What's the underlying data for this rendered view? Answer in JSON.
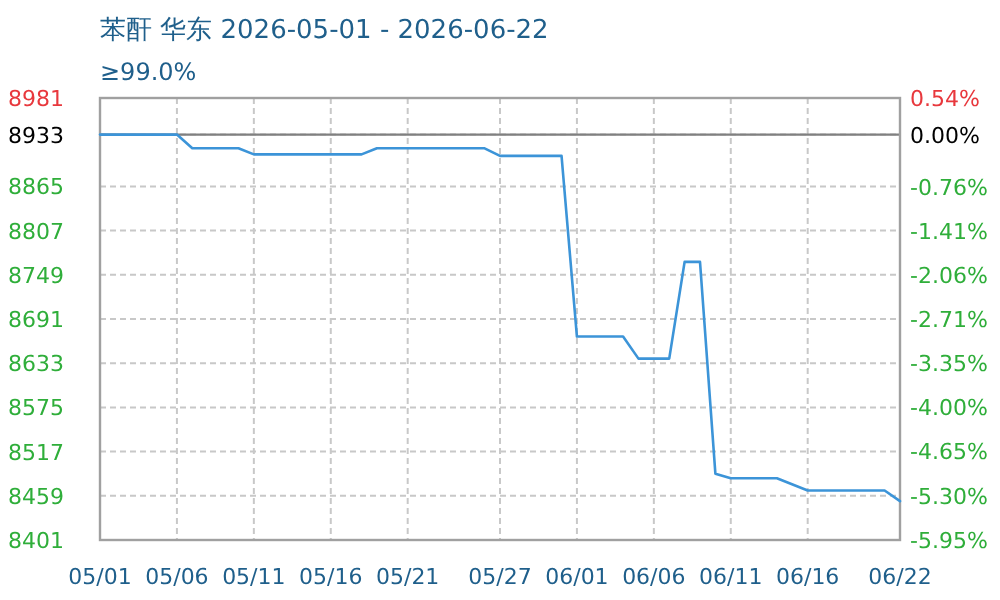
{
  "chart_data": {
    "type": "line",
    "title": "苯酐 华东 2026-05-01 - 2026-06-22",
    "subtitle": "≥99.0%",
    "x": [
      "2026-05-01",
      "2026-05-06",
      "2026-05-07",
      "2026-05-10",
      "2026-05-11",
      "2026-05-18",
      "2026-05-19",
      "2026-05-26",
      "2026-05-27",
      "2026-05-31",
      "2026-06-01",
      "2026-06-04",
      "2026-06-05",
      "2026-06-07",
      "2026-06-08",
      "2026-06-09",
      "2026-06-10",
      "2026-06-11",
      "2026-06-14",
      "2026-06-16",
      "2026-06-21",
      "2026-06-22"
    ],
    "series": [
      {
        "color": "#3c94d8",
        "values": [
          8933,
          8933,
          8915,
          8915,
          8907,
          8907,
          8915,
          8915,
          8905,
          8905,
          8668,
          8668,
          8639,
          8639,
          8766,
          8766,
          8488,
          8482,
          8482,
          8466,
          8466,
          8452
        ]
      }
    ],
    "xlim": [
      "2026-05-01",
      "2026-06-22"
    ],
    "xticks": [
      {
        "value": "2026-05-01",
        "label": "05/01"
      },
      {
        "value": "2026-05-06",
        "label": "05/06"
      },
      {
        "value": "2026-05-11",
        "label": "05/11"
      },
      {
        "value": "2026-05-16",
        "label": "05/16"
      },
      {
        "value": "2026-05-21",
        "label": "05/21"
      },
      {
        "value": "2026-05-27",
        "label": "05/27"
      },
      {
        "value": "2026-06-01",
        "label": "06/01"
      },
      {
        "value": "2026-06-06",
        "label": "06/06"
      },
      {
        "value": "2026-06-11",
        "label": "06/11"
      },
      {
        "value": "2026-06-16",
        "label": "06/16"
      },
      {
        "value": "2026-06-22",
        "label": "06/22"
      }
    ],
    "ylim": [
      8401,
      8981
    ],
    "yticks": [
      8401,
      8459,
      8517,
      8575,
      8633,
      8691,
      8749,
      8807,
      8865,
      8933,
      8981
    ],
    "y2lim": [
      -5.95,
      0.54
    ],
    "y2ticks": [
      {
        "value": -5.95,
        "label": "-5.95%"
      },
      {
        "value": -5.3,
        "label": "-5.30%"
      },
      {
        "value": -4.65,
        "label": "-4.65%"
      },
      {
        "value": -4.0,
        "label": "-4.00%"
      },
      {
        "value": -3.35,
        "label": "-3.35%"
      },
      {
        "value": -2.71,
        "label": "-2.71%"
      },
      {
        "value": -2.06,
        "label": "-2.06%"
      },
      {
        "value": -1.41,
        "label": "-1.41%"
      },
      {
        "value": -0.76,
        "label": "-0.76%"
      },
      {
        "value": 0,
        "label": "0.00%"
      },
      {
        "value": 0.54,
        "label": "0.54%"
      }
    ],
    "ref_lines": [
      {
        "axis": "y",
        "value": 8933,
        "color": "#808080"
      }
    ],
    "grid": true,
    "line_style": "solid",
    "marker": "none"
  }
}
